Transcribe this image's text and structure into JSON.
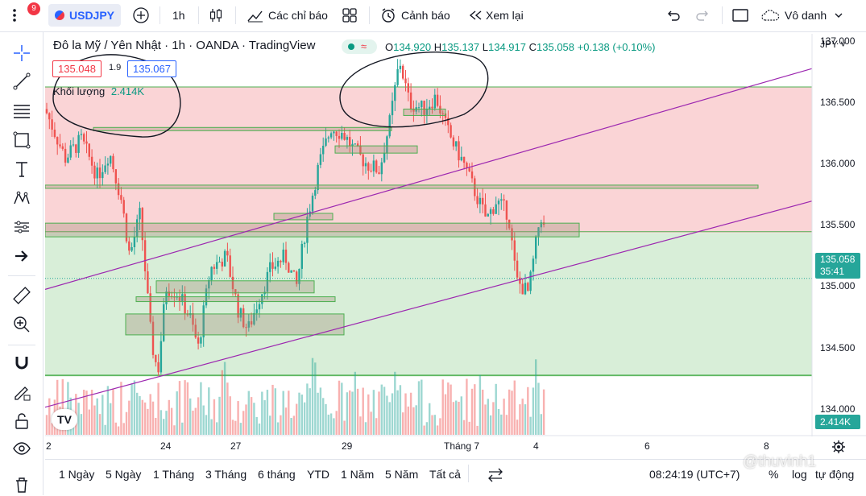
{
  "topbar": {
    "notification_count": "9",
    "symbol": "USDJPY",
    "interval": "1h",
    "indicators_label": "Các chỉ báo",
    "alerts_label": "Cảnh báo",
    "replay_label": "Xem lại",
    "layout_name": "Vô danh"
  },
  "legend": {
    "title": "Đô la Mỹ / Yên Nhật · 1h · OANDA · TradingView",
    "o_label": "O",
    "o_value": "134.920",
    "h_label": "H",
    "h_value": "135.137",
    "l_label": "L",
    "l_value": "134.917",
    "c_label": "C",
    "c_value": "135.058",
    "change": "+0.138 (+0.10%)",
    "bid": "135.048",
    "spread": "1.9",
    "ask": "135.067",
    "volume_label": "Khối lượng",
    "volume_value": "2.414K"
  },
  "chart_data": {
    "type": "candlestick",
    "currency": "JPY",
    "y_ticks": [
      "137.000",
      "136.500",
      "136.000",
      "135.500",
      "135.000",
      "134.500",
      "134.000"
    ],
    "x_ticks": [
      "2",
      "24",
      "27",
      "29",
      "Tháng 7",
      "4",
      "6",
      "8"
    ],
    "ylim": [
      133.9,
      137.05
    ],
    "last_price": "135.058",
    "countdown": "35:41",
    "volume_last": "2.414K",
    "colors": {
      "up": "#26a69a",
      "down": "#ef5350",
      "resistance_zone": "#fad4d6",
      "support_zone": "#d8eed8",
      "trendline": "#9c27b0"
    }
  },
  "bottombar": {
    "ranges": [
      "1 Ngày",
      "5 Ngày",
      "1 Tháng",
      "3 Tháng",
      "6 tháng",
      "YTD",
      "1 Năm",
      "5 Năm",
      "Tất cả"
    ],
    "clock": "08:24:19 (UTC+7)",
    "percent": "%",
    "log": "log",
    "auto": "tự động"
  },
  "watermark": "@thuvinh1"
}
